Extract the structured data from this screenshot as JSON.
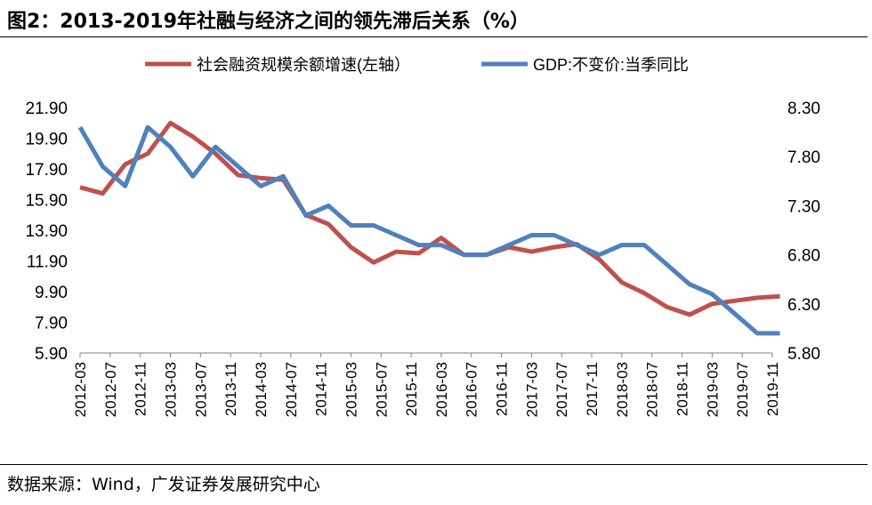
{
  "figure": {
    "title": "图2：2013-2019年社融与经济之间的领先滞后关系（%）",
    "source": "数据来源：Wind，广发证券发展研究中心"
  },
  "colors": {
    "series_1": "#C0504D",
    "series_2": "#4F81BD"
  },
  "chart_data": {
    "type": "line",
    "legend_position": "top",
    "grid": false,
    "x_tick_labels": [
      "2012-03",
      "2012-07",
      "2012-11",
      "2013-03",
      "2013-07",
      "2013-11",
      "2014-03",
      "2014-07",
      "2014-11",
      "2015-03",
      "2015-07",
      "2015-11",
      "2016-03",
      "2016-07",
      "2016-11",
      "2017-03",
      "2017-07",
      "2017-11",
      "2018-03",
      "2018-07",
      "2018-11",
      "2019-03",
      "2019-07",
      "2019-11"
    ],
    "y_left": {
      "ticks": [
        "21.90",
        "19.90",
        "17.90",
        "15.90",
        "13.90",
        "11.90",
        "9.90",
        "7.90",
        "5.90"
      ],
      "ylim": [
        5.9,
        21.9
      ]
    },
    "y_right": {
      "ticks": [
        "8.30",
        "7.80",
        "7.30",
        "6.80",
        "6.30",
        "5.80"
      ],
      "ylim": [
        5.8,
        8.3
      ]
    },
    "series": [
      {
        "name": "社会融资规模余额增速(左轴）",
        "axis": "left",
        "x": [
          "2012-03",
          "2012-06",
          "2012-09",
          "2012-12",
          "2013-03",
          "2013-06",
          "2013-09",
          "2013-12",
          "2014-03",
          "2014-06",
          "2014-09",
          "2014-12",
          "2015-03",
          "2015-06",
          "2015-09",
          "2015-12",
          "2016-03",
          "2016-06",
          "2016-09",
          "2016-12",
          "2017-03",
          "2017-06",
          "2017-09",
          "2017-12",
          "2018-03",
          "2018-06",
          "2018-09",
          "2018-12",
          "2019-03",
          "2019-06",
          "2019-09",
          "2019-12"
        ],
        "values": [
          16.7,
          16.3,
          18.2,
          18.9,
          20.9,
          20.0,
          18.9,
          17.5,
          17.3,
          17.2,
          14.9,
          14.3,
          12.8,
          11.8,
          12.5,
          12.4,
          13.4,
          12.3,
          12.3,
          12.8,
          12.5,
          12.8,
          13.0,
          12.0,
          10.5,
          9.8,
          8.9,
          8.4,
          9.1,
          9.3,
          9.5,
          9.6
        ]
      },
      {
        "name": "GDP:不变价:当季同比",
        "axis": "right",
        "x": [
          "2012-03",
          "2012-06",
          "2012-09",
          "2012-12",
          "2013-03",
          "2013-06",
          "2013-09",
          "2013-12",
          "2014-03",
          "2014-06",
          "2014-09",
          "2014-12",
          "2015-03",
          "2015-06",
          "2015-09",
          "2015-12",
          "2016-03",
          "2016-06",
          "2016-09",
          "2016-12",
          "2017-03",
          "2017-06",
          "2017-09",
          "2017-12",
          "2018-03",
          "2018-06",
          "2018-09",
          "2018-12",
          "2019-03",
          "2019-06",
          "2019-09",
          "2019-12"
        ],
        "values": [
          8.1,
          7.7,
          7.5,
          8.1,
          7.9,
          7.6,
          7.9,
          7.7,
          7.5,
          7.6,
          7.2,
          7.3,
          7.1,
          7.1,
          7.0,
          6.9,
          6.9,
          6.8,
          6.8,
          6.9,
          7.0,
          7.0,
          6.9,
          6.8,
          6.9,
          6.9,
          6.7,
          6.5,
          6.4,
          6.2,
          6.0,
          6.0
        ]
      }
    ]
  }
}
